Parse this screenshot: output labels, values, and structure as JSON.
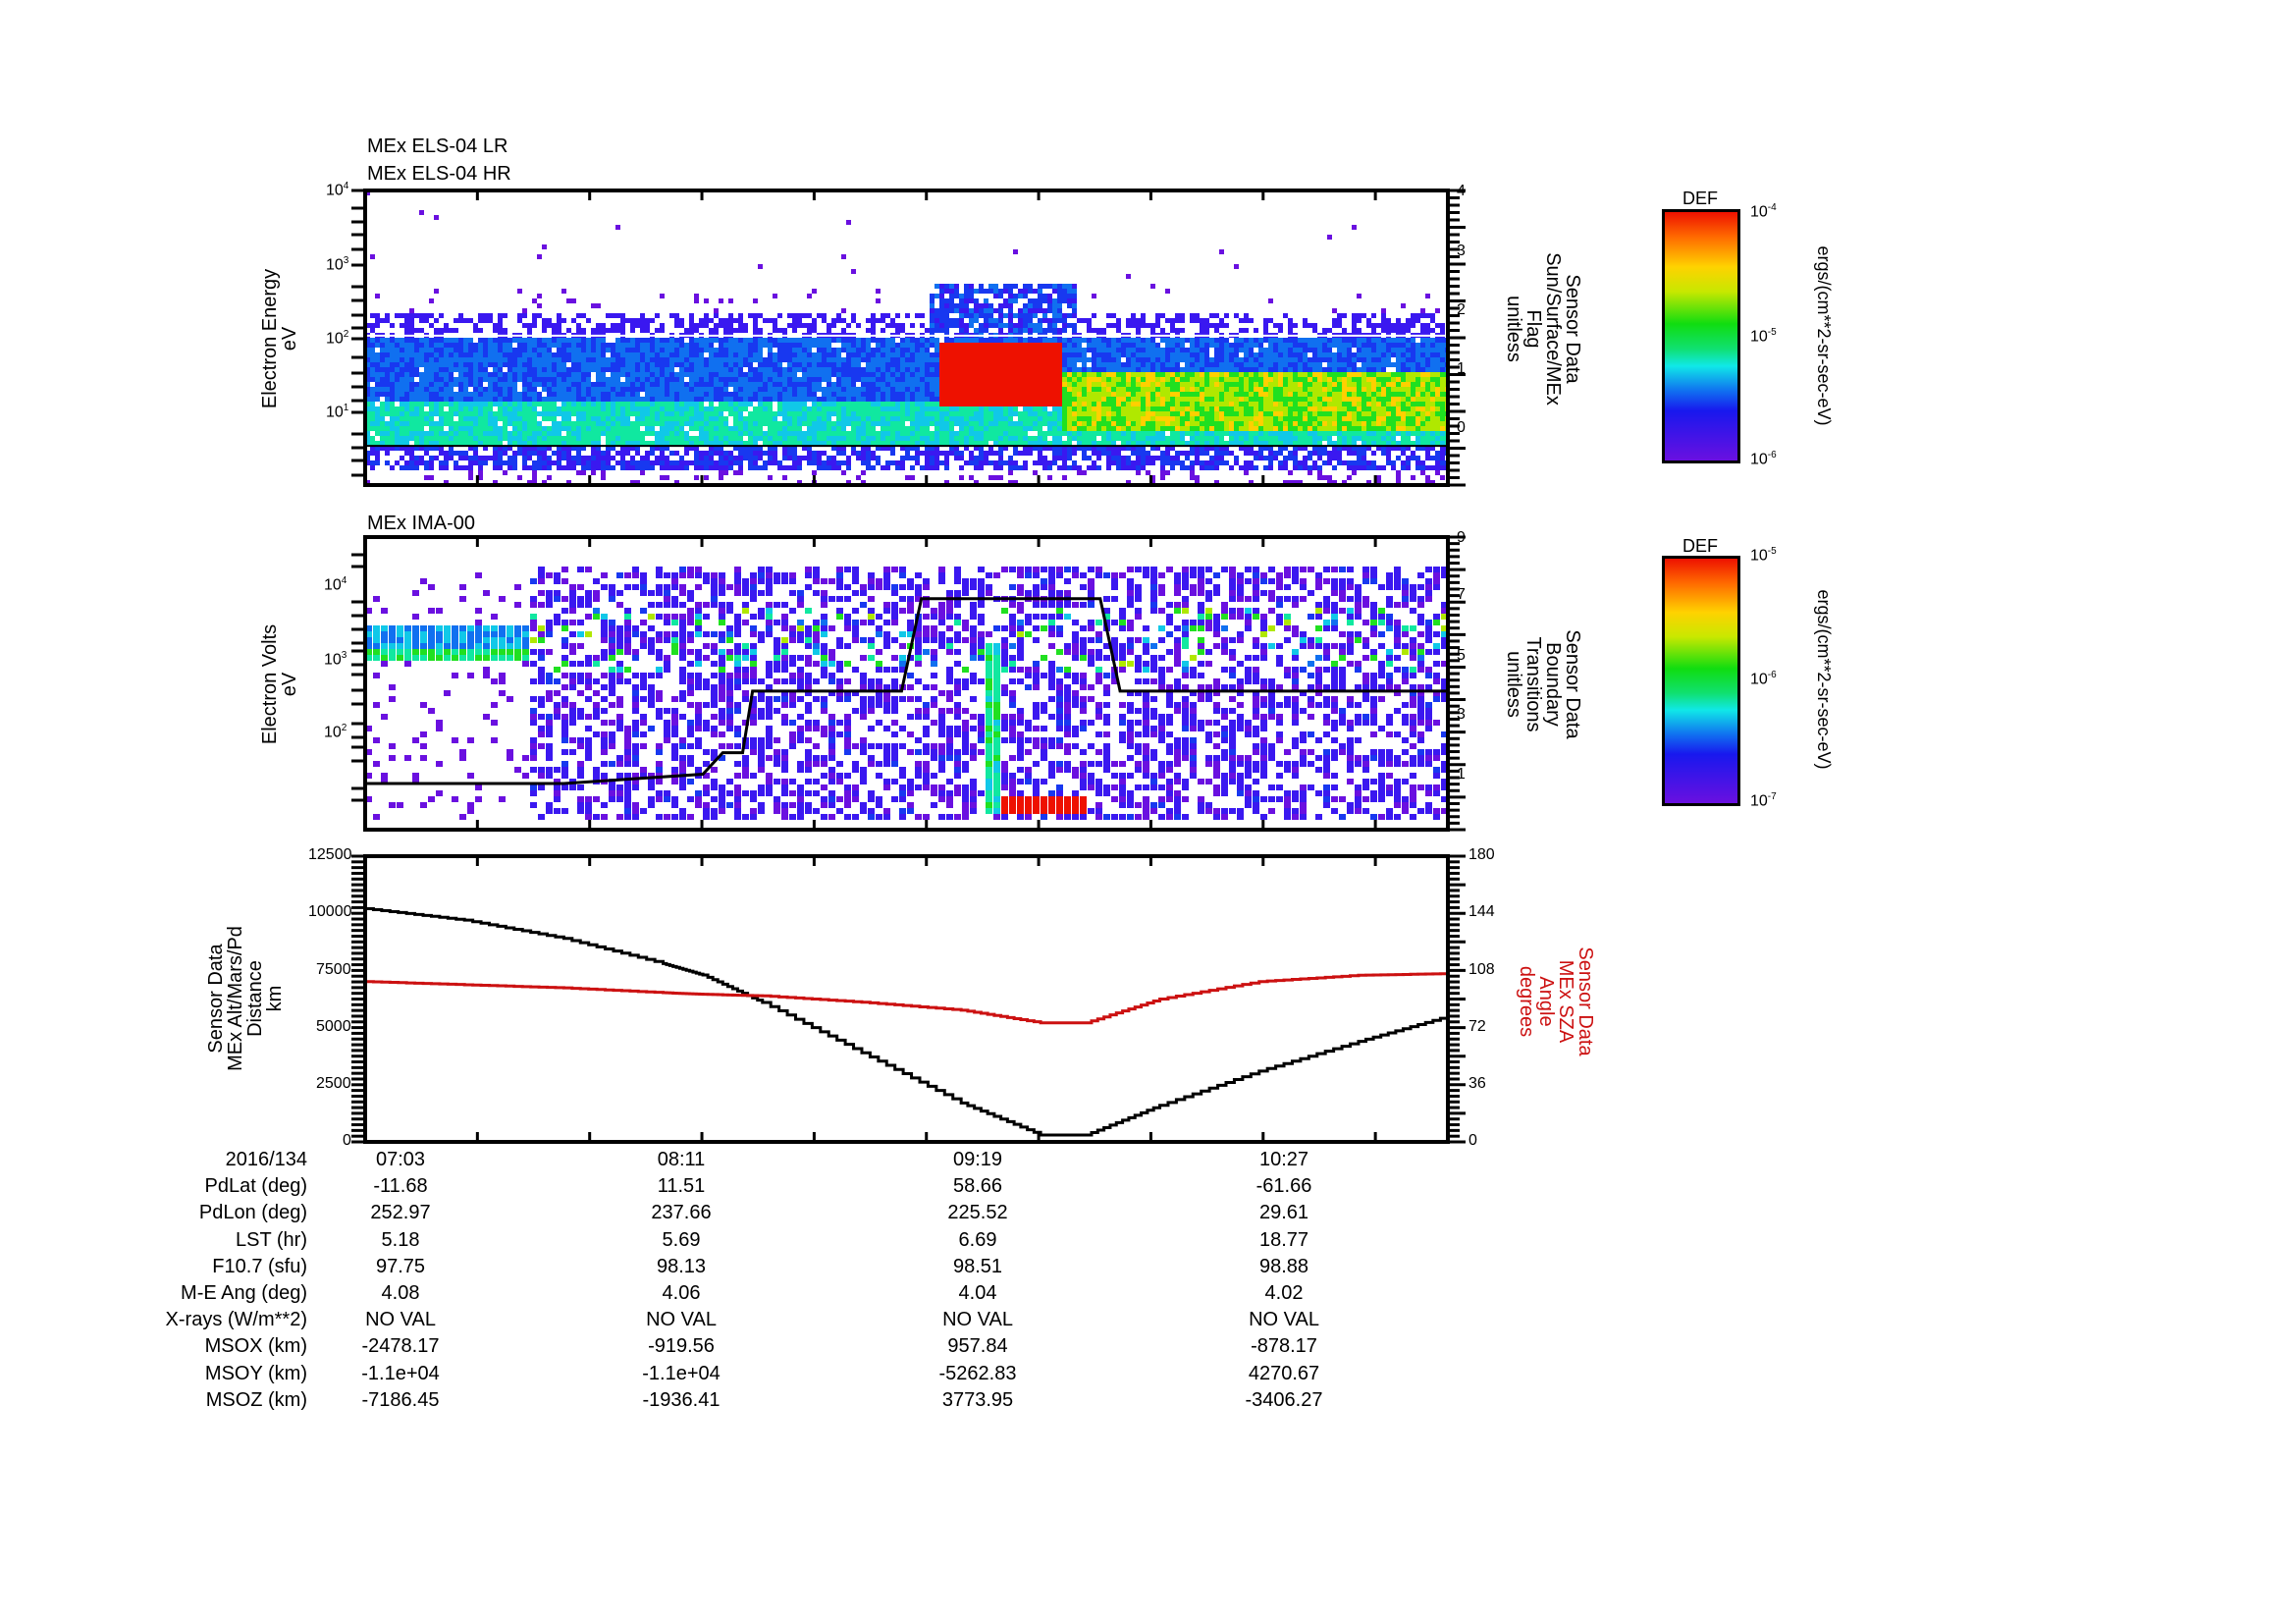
{
  "panel1": {
    "titles": [
      "MEx ELS-04 LR",
      "MEx ELS-04 HR"
    ],
    "ylabel": [
      "Electron Energy",
      "eV"
    ],
    "yticks": [
      {
        "base": "10",
        "exp": "4"
      },
      {
        "base": "10",
        "exp": "3"
      },
      {
        "base": "10",
        "exp": "2"
      },
      {
        "base": "10",
        "exp": "1"
      }
    ],
    "y2label": [
      "Sensor Data",
      "Sun/Surface/MEx",
      "Flag",
      "unitless"
    ],
    "y2ticks": [
      "4",
      "3",
      "2",
      "1",
      "0"
    ],
    "colorbar": {
      "title": "DEF",
      "max": {
        "base": "10",
        "exp": "-4"
      },
      "mid": {
        "base": "10",
        "exp": "-5"
      },
      "min": {
        "base": "10",
        "exp": "-6"
      },
      "unit": "ergs/(cm**2-sr-sec-eV)"
    }
  },
  "panel2": {
    "titles": [
      "MEx IMA-00"
    ],
    "ylabel": [
      "Electron Volts",
      "eV"
    ],
    "yticks": [
      {
        "base": "10",
        "exp": "4"
      },
      {
        "base": "10",
        "exp": "3"
      },
      {
        "base": "10",
        "exp": "2"
      }
    ],
    "y2label": [
      "Sensor Data",
      "Boundary",
      "Transitions",
      "unitless"
    ],
    "y2ticks": [
      "9",
      "7",
      "5",
      "3",
      "1"
    ],
    "colorbar": {
      "title": "DEF",
      "max": {
        "base": "10",
        "exp": "-5"
      },
      "mid": {
        "base": "10",
        "exp": "-6"
      },
      "min": {
        "base": "10",
        "exp": "-7"
      },
      "unit": "ergs/(cm**2-sr-sec-eV)"
    }
  },
  "panel3": {
    "ylabel": [
      "Sensor Data",
      "MEx Alt/Mars/Pd",
      "Distance",
      "km"
    ],
    "yticks": [
      "12500",
      "10000",
      "7500",
      "5000",
      "2500",
      "0"
    ],
    "y2label": [
      "Sensor Data",
      "MEx SZA",
      "Angle",
      "degrees"
    ],
    "y2ticks": [
      "180",
      "144",
      "108",
      "72",
      "36",
      "0"
    ],
    "series_colors": {
      "altitude": "#000000",
      "sza": "#cc1111"
    }
  },
  "ephemeris": {
    "rows": [
      {
        "label": "2016/134",
        "values": [
          "07:03",
          "08:11",
          "09:19",
          "10:27"
        ]
      },
      {
        "label": "PdLat (deg)",
        "values": [
          "-11.68",
          "11.51",
          "58.66",
          "-61.66"
        ]
      },
      {
        "label": "PdLon (deg)",
        "values": [
          "252.97",
          "237.66",
          "225.52",
          "29.61"
        ]
      },
      {
        "label": "LST (hr)",
        "values": [
          "5.18",
          "5.69",
          "6.69",
          "18.77"
        ]
      },
      {
        "label": "F10.7 (sfu)",
        "values": [
          "97.75",
          "98.13",
          "98.51",
          "98.88"
        ]
      },
      {
        "label": "M-E Ang (deg)",
        "values": [
          "4.08",
          "4.06",
          "4.04",
          "4.02"
        ]
      },
      {
        "label": "X-rays (W/m**2)",
        "values": [
          "NO VAL",
          "NO VAL",
          "NO VAL",
          "NO VAL"
        ]
      },
      {
        "label": "MSOX (km)",
        "values": [
          "-2478.17",
          "-919.56",
          "957.84",
          "-878.17"
        ]
      },
      {
        "label": "MSOY (km)",
        "values": [
          "-1.1e+04",
          "-1.1e+04",
          "-5262.83",
          "4270.67"
        ]
      },
      {
        "label": "MSOZ (km)",
        "values": [
          "-7186.45",
          "-1936.41",
          "3773.95",
          "-3406.27"
        ]
      }
    ]
  },
  "chart_data": [
    {
      "type": "heatmap",
      "title": "MEx ELS-04 LR / MEx ELS-04 HR",
      "xlabel": "UT (2016/134)",
      "x_ticks": [
        "07:03",
        "08:11",
        "09:19",
        "10:27"
      ],
      "x_range_min": [
        0,
        218
      ],
      "ylabel": "Electron Energy (eV)",
      "yscale": "log",
      "ylim": [
        2,
        10000
      ],
      "colorbar": {
        "label": "DEF ergs/(cm**2-sr-sec-eV)",
        "range": [
          1e-06,
          0.0001
        ],
        "scale": "log"
      },
      "features": [
        {
          "t_start_min": 0,
          "t_end_min": 85,
          "e_low": 7,
          "e_high": 150,
          "level": "blue-cyan",
          "note": "background band peak ~10 eV"
        },
        {
          "t_start_min": 115,
          "t_end_min": 140,
          "e_low": 20,
          "e_high": 140,
          "level": "red",
          "note": "intense flux event near 09:15"
        },
        {
          "t_start_min": 140,
          "t_end_min": 218,
          "e_low": 10,
          "e_high": 60,
          "level": "green-yellow"
        }
      ],
      "y2": {
        "label": "Sensor Data Sun/Surface/MEx Flag (unitless)",
        "ylim": [
          -0.8,
          4
        ],
        "ticks": [
          0,
          1,
          2,
          3,
          4
        ],
        "series": [
          {
            "name": "flag",
            "x_min": [
              0,
              218
            ],
            "y": [
              0,
              0
            ]
          }
        ]
      }
    },
    {
      "type": "heatmap",
      "title": "MEx IMA-00",
      "xlabel": "UT (2016/134)",
      "x_ticks": [
        "07:03",
        "08:11",
        "09:19",
        "10:27"
      ],
      "ylabel": "Electron Volts (eV)",
      "yscale": "log",
      "ylim": [
        10,
        40000
      ],
      "colorbar": {
        "label": "DEF ergs/(cm**2-sr-sec-eV)",
        "range": [
          1e-07,
          1e-05
        ],
        "scale": "log"
      },
      "features": [
        {
          "t_start_min": 0,
          "t_end_min": 33,
          "e_low": 1200,
          "e_high": 3500,
          "level": "blue-green",
          "note": "solar wind beam"
        },
        {
          "t_start_min": 125,
          "t_end_min": 145,
          "e_low": 12,
          "e_high": 20,
          "level": "red",
          "note": "low-energy ionospheric ions"
        }
      ],
      "y2": {
        "label": "Sensor Data Boundary Transitions (unitless)",
        "ylim": [
          -0.5,
          9
        ],
        "ticks": [
          1,
          3,
          5,
          7,
          9
        ],
        "series": [
          {
            "name": "boundary",
            "x_min": [
              0,
              40,
              68,
              72,
              76,
              78,
              96,
              108,
              112,
              148,
              152,
              218
            ],
            "y": [
              1,
              1,
              1.3,
              2,
              2,
              4,
              4,
              4,
              7,
              7,
              4,
              4
            ]
          }
        ]
      }
    },
    {
      "type": "line",
      "title": "",
      "xlabel": "UT (2016/134)",
      "x_ticks": [
        "07:03",
        "08:11",
        "09:19",
        "10:27"
      ],
      "ylabel": "Sensor Data MEx Alt/Mars/Pd Distance (km)",
      "ylim": [
        0,
        12500
      ],
      "y2label": "Sensor Data MEx SZA Angle (degrees)",
      "y2lim": [
        0,
        180
      ],
      "x_min": [
        0,
        20,
        40,
        60,
        68,
        80,
        100,
        120,
        136,
        145,
        160,
        180,
        200,
        218
      ],
      "series": [
        {
          "name": "Altitude (km)",
          "axis": "left",
          "color": "#000000",
          "values": [
            10200,
            9700,
            8900,
            7800,
            7300,
            6100,
            3900,
            1700,
            300,
            300,
            1600,
            3100,
            4400,
            5500
          ]
        },
        {
          "name": "SZA (deg)",
          "axis": "right",
          "color": "#cc1111",
          "values": [
            101,
            99,
            97,
            94,
            93,
            92,
            88,
            83,
            75,
            75,
            90,
            101,
            105,
            106
          ]
        }
      ]
    }
  ]
}
